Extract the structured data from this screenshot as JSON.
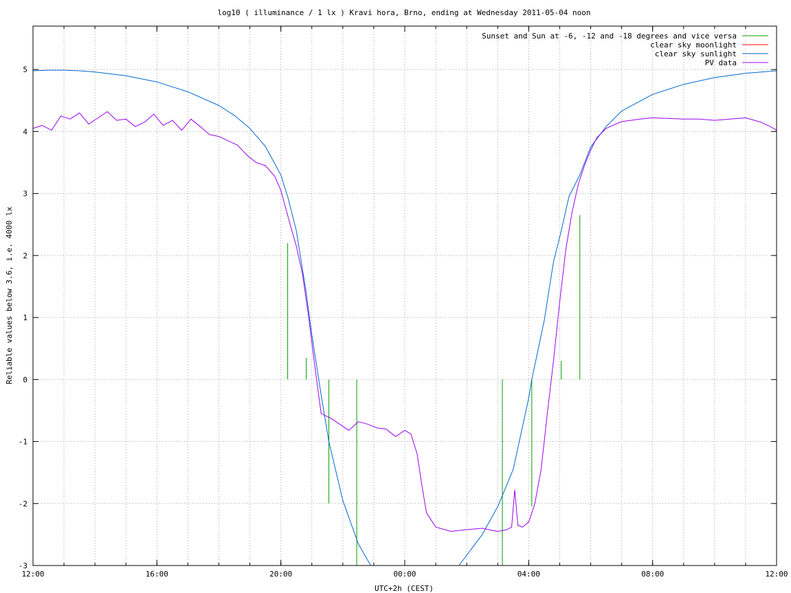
{
  "chart_data": {
    "type": "line",
    "title": "log10 ( illuminance / 1 lx ) Kravi hora, Brno, ending at Wednesday 2011-05-04 noon",
    "xlabel": "UTC+2h (CEST)",
    "ylabel": "Reliable values below 3.6, i.e. 4000 lx",
    "xlim": [
      12,
      36
    ],
    "ylim": [
      -3,
      5.7
    ],
    "grid": true,
    "legend_position": "top-right",
    "x_ticks": [
      {
        "value": 12,
        "label": "12:00"
      },
      {
        "value": 16,
        "label": "16:00"
      },
      {
        "value": 20,
        "label": "20:00"
      },
      {
        "value": 24,
        "label": "00:00"
      },
      {
        "value": 28,
        "label": "04:00"
      },
      {
        "value": 32,
        "label": "08:00"
      },
      {
        "value": 36,
        "label": "12:00"
      }
    ],
    "x_grid_step": 1,
    "y_ticks": [
      {
        "value": -3,
        "label": "-3"
      },
      {
        "value": -2,
        "label": "-2"
      },
      {
        "value": -1,
        "label": "-1"
      },
      {
        "value": 0,
        "label": "0"
      },
      {
        "value": 1,
        "label": "1"
      },
      {
        "value": 2,
        "label": "2"
      },
      {
        "value": 3,
        "label": "3"
      },
      {
        "value": 4,
        "label": "4"
      },
      {
        "value": 5,
        "label": "5"
      }
    ],
    "series": [
      {
        "name": "Sunset and Sun at -6, -12 and -18 degrees and vice versa",
        "color": "#00a000",
        "style": "impulses",
        "x": [
          20.22,
          20.82,
          21.55,
          22.45,
          27.15,
          28.1,
          29.05,
          29.65
        ],
        "y": [
          2.2,
          0.35,
          -2.0,
          -3.0,
          -3.0,
          -2.05,
          0.3,
          2.65
        ]
      },
      {
        "name": "clear sky moonlight",
        "color": "#ff0000",
        "style": "line",
        "x": [],
        "y": []
      },
      {
        "name": "clear sky sunlight",
        "color": "#0066cc",
        "style": "line",
        "x": [
          12,
          12.5,
          13,
          13.5,
          14,
          15,
          16,
          17,
          18,
          18.5,
          19,
          19.5,
          20,
          20.22,
          20.5,
          20.82,
          21,
          21.3,
          21.55,
          22,
          22.5,
          22.9,
          25.75,
          26.5,
          27,
          27.5,
          28,
          28.1,
          28.5,
          28.8,
          29.05,
          29.3,
          29.65,
          30,
          30.5,
          31,
          32,
          33,
          34,
          35,
          36
        ],
        "y": [
          4.98,
          4.99,
          4.99,
          4.98,
          4.96,
          4.9,
          4.8,
          4.64,
          4.42,
          4.26,
          4.05,
          3.76,
          3.3,
          2.95,
          2.4,
          1.4,
          0.72,
          -0.25,
          -1.0,
          -1.95,
          -2.65,
          -3.0,
          -3.0,
          -2.5,
          -2.05,
          -1.45,
          -0.3,
          0.0,
          0.95,
          1.9,
          2.4,
          2.95,
          3.3,
          3.75,
          4.08,
          4.33,
          4.6,
          4.76,
          4.87,
          4.94,
          4.98
        ]
      },
      {
        "name": "PV data",
        "color": "#9900ee",
        "style": "line",
        "x": [
          12,
          12.3,
          12.6,
          12.9,
          13.2,
          13.5,
          13.8,
          14.1,
          14.4,
          14.7,
          15,
          15.3,
          15.6,
          15.9,
          16.2,
          16.5,
          16.8,
          17.1,
          17.4,
          17.7,
          18,
          18.3,
          18.6,
          18.9,
          19.2,
          19.5,
          19.8,
          20,
          20.3,
          20.5,
          20.7,
          20.9,
          21.1,
          21.3,
          21.6,
          21.9,
          22.2,
          22.5,
          22.8,
          23.1,
          23.4,
          23.7,
          24,
          24.2,
          24.4,
          24.55,
          24.7,
          25,
          25.5,
          26,
          26.5,
          27,
          27.3,
          27.45,
          27.55,
          27.65,
          27.8,
          28,
          28.2,
          28.4,
          28.6,
          28.8,
          29,
          29.2,
          29.4,
          29.6,
          29.8,
          30,
          30.2,
          30.5,
          30.8,
          31,
          31.3,
          31.6,
          32,
          32.5,
          33,
          33.5,
          34,
          34.5,
          35,
          35.5,
          35.8,
          36
        ],
        "y": [
          4.05,
          4.1,
          4.02,
          4.25,
          4.2,
          4.3,
          4.12,
          4.22,
          4.32,
          4.18,
          4.2,
          4.08,
          4.15,
          4.28,
          4.1,
          4.18,
          4.02,
          4.2,
          4.08,
          3.95,
          3.92,
          3.85,
          3.78,
          3.62,
          3.5,
          3.45,
          3.28,
          3.05,
          2.5,
          2.15,
          1.7,
          1.0,
          0.2,
          -0.55,
          -0.62,
          -0.72,
          -0.82,
          -0.68,
          -0.72,
          -0.78,
          -0.8,
          -0.92,
          -0.82,
          -0.88,
          -1.2,
          -1.7,
          -2.15,
          -2.38,
          -2.45,
          -2.42,
          -2.4,
          -2.45,
          -2.42,
          -2.38,
          -1.78,
          -2.35,
          -2.38,
          -2.3,
          -2.0,
          -1.45,
          -0.55,
          0.3,
          1.25,
          2.1,
          2.7,
          3.15,
          3.45,
          3.7,
          3.9,
          4.05,
          4.12,
          4.16,
          4.18,
          4.2,
          4.22,
          4.21,
          4.2,
          4.2,
          4.18,
          4.2,
          4.22,
          4.15,
          4.08,
          4.02
        ]
      }
    ]
  }
}
